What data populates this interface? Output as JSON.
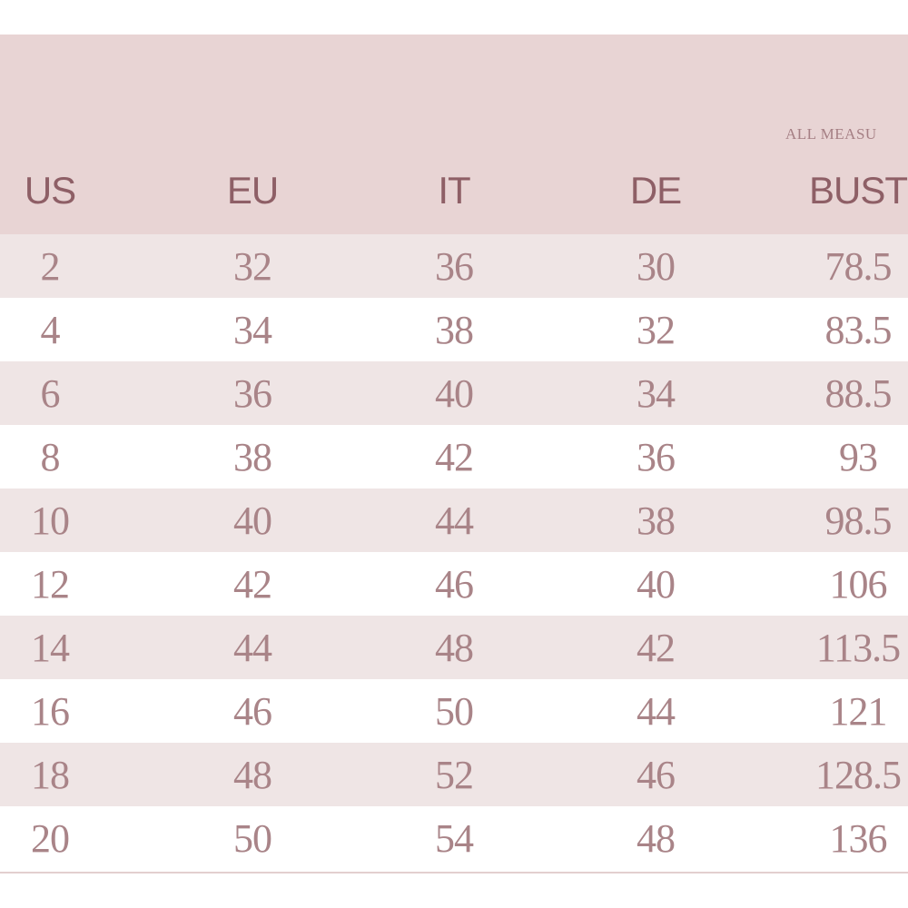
{
  "table": {
    "note": "ALL MEASU",
    "header": [
      "US",
      "EU",
      "IT",
      "DE",
      "BUST"
    ],
    "rows": [
      [
        2,
        32,
        36,
        30,
        78.5
      ],
      [
        4,
        34,
        38,
        32,
        83.5
      ],
      [
        6,
        36,
        40,
        34,
        88.5
      ],
      [
        8,
        38,
        42,
        36,
        93
      ],
      [
        10,
        40,
        44,
        38,
        98.5
      ],
      [
        12,
        42,
        46,
        40,
        106
      ],
      [
        14,
        44,
        48,
        42,
        113.5
      ],
      [
        16,
        46,
        50,
        44,
        121
      ],
      [
        18,
        48,
        52,
        46,
        128.5
      ],
      [
        20,
        50,
        54,
        48,
        136
      ]
    ]
  }
}
